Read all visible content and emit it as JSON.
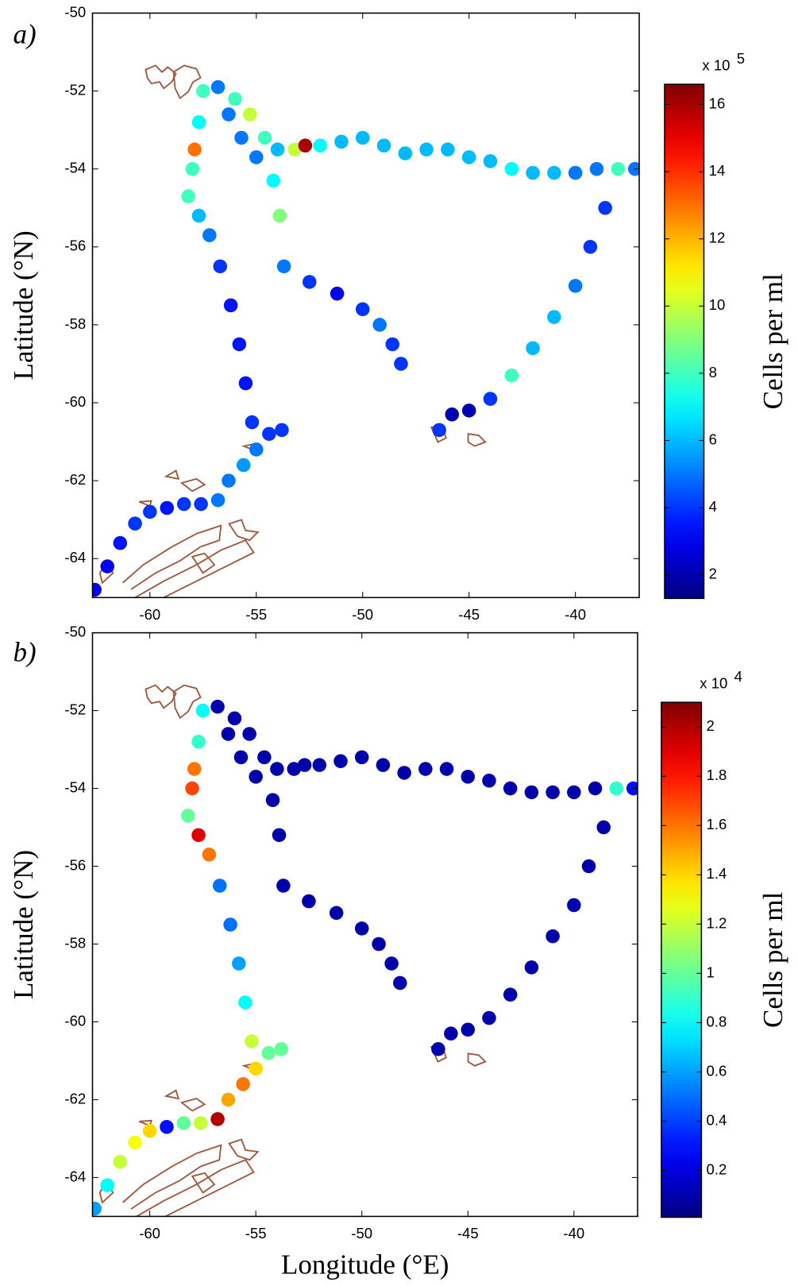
{
  "chart_data": [
    {
      "type": "scatter",
      "panel_label": "a)",
      "ylabel": "Latitude (°N)",
      "xlim": [
        -62.7,
        -37
      ],
      "ylim": [
        -65,
        -50
      ],
      "xticks": [
        -60,
        -55,
        -50,
        -45,
        -40
      ],
      "yticks": [
        -64,
        -62,
        -60,
        -58,
        -56,
        -54,
        -52,
        -50
      ],
      "colormap": "jet",
      "clim": [
        1.3,
        16.6
      ],
      "cticks": [
        2,
        4,
        6,
        8,
        10,
        12,
        14,
        16
      ],
      "clabel": "Cells per ml",
      "cscale_base": "x 10",
      "cscale_exp": "5",
      "x": [
        -62.6,
        -62.0,
        -61.4,
        -60.7,
        -60.0,
        -59.2,
        -58.4,
        -57.6,
        -56.8,
        -56.3,
        -55.6,
        -55.0,
        -54.4,
        -53.8,
        -55.2,
        -55.5,
        -55.8,
        -56.2,
        -56.7,
        -57.2,
        -57.7,
        -58.2,
        -58.0,
        -57.9,
        -57.7,
        -57.5,
        -56.8,
        -56.0,
        -55.3,
        -54.6,
        -54.0,
        -53.2,
        -52.7,
        -52.0,
        -51.0,
        -50.0,
        -49.0,
        -48.0,
        -47.0,
        -46.0,
        -45.0,
        -44.0,
        -43.0,
        -42.0,
        -41.0,
        -40.0,
        -39.0,
        -38.0,
        -37.2,
        -38.6,
        -39.3,
        -40.0,
        -41.0,
        -42.0,
        -43.0,
        -44.0,
        -45.0,
        -45.8,
        -46.4,
        -56.3,
        -55.7,
        -55.0,
        -54.2,
        -53.9,
        -53.7,
        -52.5,
        -51.2,
        -50.0,
        -49.2,
        -48.6,
        -48.2
      ],
      "y": [
        -64.8,
        -64.2,
        -63.6,
        -63.1,
        -62.8,
        -62.7,
        -62.6,
        -62.6,
        -62.5,
        -62.0,
        -61.6,
        -61.2,
        -60.8,
        -60.7,
        -60.5,
        -59.5,
        -58.5,
        -57.5,
        -56.5,
        -55.7,
        -55.2,
        -54.7,
        -54.0,
        -53.5,
        -52.8,
        -52.0,
        -51.9,
        -52.2,
        -52.6,
        -53.2,
        -53.5,
        -53.5,
        -53.4,
        -53.4,
        -53.3,
        -53.2,
        -53.4,
        -53.6,
        -53.5,
        -53.5,
        -53.7,
        -53.8,
        -54.0,
        -54.1,
        -54.1,
        -54.1,
        -54.0,
        -54.0,
        -54.0,
        -55.0,
        -56.0,
        -57.0,
        -57.8,
        -58.6,
        -59.3,
        -59.9,
        -60.2,
        -60.3,
        -60.7,
        -52.6,
        -53.2,
        -53.7,
        -54.3,
        -55.2,
        -56.5,
        -56.9,
        -57.2,
        -57.6,
        -58.0,
        -58.5,
        -59.0
      ],
      "values": [
        3,
        3,
        3.5,
        4,
        4,
        3.5,
        4,
        4,
        5,
        5,
        5.5,
        5,
        4,
        4,
        4,
        3.5,
        3.5,
        3.5,
        4,
        5,
        6,
        8,
        8,
        13,
        7,
        8,
        5,
        8,
        10,
        8,
        6,
        10,
        16,
        7,
        6,
        6,
        6,
        6,
        6,
        6,
        6,
        6,
        7,
        6,
        6,
        5,
        5,
        8,
        5,
        4,
        4,
        5,
        6,
        6,
        8,
        4,
        2,
        2,
        4,
        5,
        5,
        5,
        7,
        9,
        5,
        4,
        3,
        4,
        5,
        4,
        4
      ]
    },
    {
      "type": "scatter",
      "panel_label": "b)",
      "ylabel": "Latitude (°N)",
      "xlabel": "Longitude (°E)",
      "xlim": [
        -62.7,
        -37
      ],
      "ylim": [
        -65,
        -50
      ],
      "xticks": [
        -60,
        -55,
        -50,
        -45,
        -40
      ],
      "yticks": [
        -64,
        -62,
        -60,
        -58,
        -56,
        -54,
        -52,
        -50
      ],
      "colormap": "jet",
      "clim": [
        0.01,
        2.1
      ],
      "cticks": [
        0.2,
        0.4,
        0.6,
        0.8,
        1,
        1.2,
        1.4,
        1.6,
        1.8,
        2
      ],
      "clabel": "Cells per ml",
      "cscale_base": "x 10",
      "cscale_exp": "4",
      "x": [
        -62.6,
        -62.0,
        -61.4,
        -60.7,
        -60.0,
        -59.2,
        -58.4,
        -57.6,
        -56.8,
        -56.3,
        -55.6,
        -55.0,
        -54.4,
        -53.8,
        -55.2,
        -55.5,
        -55.8,
        -56.2,
        -56.7,
        -57.2,
        -57.7,
        -58.2,
        -58.0,
        -57.9,
        -57.7,
        -57.5,
        -56.8,
        -56.0,
        -55.3,
        -54.6,
        -54.0,
        -53.2,
        -52.7,
        -52.0,
        -51.0,
        -50.0,
        -49.0,
        -48.0,
        -47.0,
        -46.0,
        -45.0,
        -44.0,
        -43.0,
        -42.0,
        -41.0,
        -40.0,
        -39.0,
        -38.0,
        -37.2,
        -38.6,
        -39.3,
        -40.0,
        -41.0,
        -42.0,
        -43.0,
        -44.0,
        -45.0,
        -45.8,
        -46.4,
        -56.3,
        -55.7,
        -55.0,
        -54.2,
        -53.9,
        -53.7,
        -52.5,
        -51.2,
        -50.0,
        -49.2,
        -48.6,
        -48.2
      ],
      "y": [
        -64.8,
        -64.2,
        -63.6,
        -63.1,
        -62.8,
        -62.7,
        -62.6,
        -62.6,
        -62.5,
        -62.0,
        -61.6,
        -61.2,
        -60.8,
        -60.7,
        -60.5,
        -59.5,
        -58.5,
        -57.5,
        -56.5,
        -55.7,
        -55.2,
        -54.7,
        -54.0,
        -53.5,
        -52.8,
        -52.0,
        -51.9,
        -52.2,
        -52.6,
        -53.2,
        -53.5,
        -53.5,
        -53.4,
        -53.4,
        -53.3,
        -53.2,
        -53.4,
        -53.6,
        -53.5,
        -53.5,
        -53.7,
        -53.8,
        -54.0,
        -54.1,
        -54.1,
        -54.1,
        -54.0,
        -54.0,
        -54.0,
        -55.0,
        -56.0,
        -57.0,
        -57.8,
        -58.6,
        -59.3,
        -59.9,
        -60.2,
        -60.3,
        -60.7,
        -52.6,
        -53.2,
        -53.7,
        -54.3,
        -55.2,
        -56.5,
        -56.9,
        -57.2,
        -57.6,
        -58.0,
        -58.5,
        -59.0
      ],
      "values": [
        0.6,
        0.8,
        1.2,
        1.3,
        1.4,
        0.3,
        1.0,
        1.2,
        2.0,
        1.5,
        1.6,
        1.4,
        1.0,
        1.0,
        1.2,
        0.8,
        0.6,
        0.5,
        0.5,
        1.6,
        1.9,
        1.0,
        1.7,
        1.6,
        0.9,
        0.8,
        0.1,
        0.1,
        0.1,
        0.1,
        0.1,
        0.1,
        0.1,
        0.1,
        0.1,
        0.1,
        0.1,
        0.1,
        0.1,
        0.1,
        0.1,
        0.1,
        0.1,
        0.1,
        0.1,
        0.1,
        0.1,
        0.9,
        0.3,
        0.1,
        0.1,
        0.1,
        0.1,
        0.1,
        0.1,
        0.1,
        0.1,
        0.1,
        0.1,
        0.1,
        0.1,
        0.1,
        0.1,
        0.1,
        0.1,
        0.1,
        0.1,
        0.1,
        0.1,
        0.1,
        0.1
      ]
    }
  ]
}
